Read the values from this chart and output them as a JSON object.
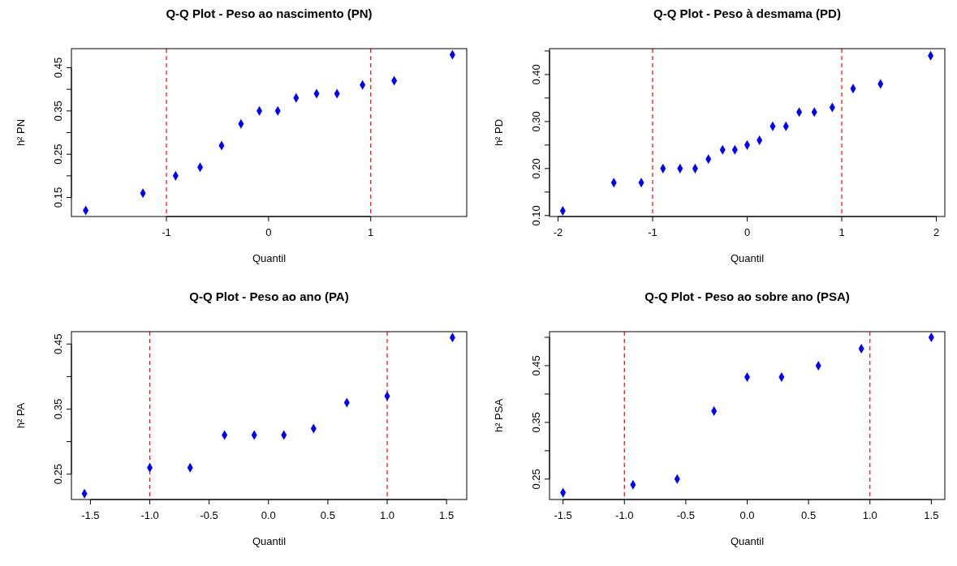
{
  "chart_data": [
    {
      "type": "scatter",
      "title": "Q-Q Plot - Peso ao nascimento (PN)",
      "xlabel": "Quantil",
      "ylabel": "h² PN",
      "marker": "diamond",
      "grid": false,
      "xlim": [
        -1.93,
        1.94
      ],
      "xticks": [
        -1,
        0,
        1
      ],
      "ylim": [
        0.106,
        0.494
      ],
      "yticks": [
        0.15,
        {
          "value": 0.2,
          "label": null
        },
        0.25,
        {
          "value": 0.3,
          "label": null
        },
        0.35,
        {
          "value": 0.4,
          "label": null
        },
        0.45
      ],
      "series": [
        {
          "color": "#0000ff",
          "x": [
            -1.79,
            -1.23,
            -0.91,
            -0.67,
            -0.46,
            -0.27,
            -0.09,
            0.09,
            0.27,
            0.47,
            0.67,
            0.92,
            1.23,
            1.8
          ],
          "values": [
            0.12,
            0.16,
            0.2,
            0.22,
            0.27,
            0.32,
            0.35,
            0.35,
            0.38,
            0.39,
            0.39,
            0.41,
            0.42,
            0.48
          ]
        }
      ],
      "ref_lines": [
        {
          "axis": "x",
          "value": -1,
          "color": "#ff0000",
          "line_style": "dashed"
        },
        {
          "axis": "x",
          "value": 1,
          "color": "#ff0000",
          "line_style": "dashed"
        }
      ]
    },
    {
      "type": "scatter",
      "title": "Q-Q Plot - Peso à desmama (PD)",
      "xlabel": "Quantil",
      "ylabel": "h² PD",
      "marker": "diamond",
      "grid": false,
      "xlim": [
        -2.09,
        2.09
      ],
      "xticks": [
        -2,
        -1,
        0,
        1,
        2
      ],
      "ylim": [
        0.098,
        0.455
      ],
      "yticks": [
        {
          "value": 0.1,
          "label": "0.10"
        },
        {
          "value": 0.15,
          "label": null
        },
        {
          "value": 0.2,
          "label": "0.20"
        },
        {
          "value": 0.25,
          "label": null
        },
        {
          "value": 0.3,
          "label": "0.30"
        },
        {
          "value": 0.35,
          "label": null
        },
        {
          "value": 0.4,
          "label": "0.40"
        },
        {
          "value": 0.45,
          "label": null
        }
      ],
      "series": [
        {
          "color": "#0000ff",
          "x": [
            -1.95,
            -1.41,
            -1.12,
            -0.89,
            -0.71,
            -0.55,
            -0.41,
            -0.26,
            -0.13,
            0,
            0.13,
            0.27,
            0.41,
            0.55,
            0.71,
            0.9,
            1.12,
            1.41,
            1.94
          ],
          "values": [
            0.11,
            0.17,
            0.17,
            0.2,
            0.2,
            0.2,
            0.22,
            0.24,
            0.24,
            0.25,
            0.26,
            0.29,
            0.29,
            0.32,
            0.32,
            0.33,
            0.37,
            0.38,
            0.44
          ]
        }
      ],
      "ref_lines": [
        {
          "axis": "x",
          "value": -1,
          "color": "#ff0000",
          "line_style": "dashed"
        },
        {
          "axis": "x",
          "value": 1,
          "color": "#ff0000",
          "line_style": "dashed"
        }
      ]
    },
    {
      "type": "scatter",
      "title": "Q-Q Plot - Peso ao ano (PA)",
      "xlabel": "Quantil",
      "ylabel": "h² PA",
      "marker": "diamond",
      "grid": false,
      "xlim": [
        -1.66,
        1.67
      ],
      "xticks": [
        -1.5,
        {
          "value": -1,
          "label": "-1.0"
        },
        -0.5,
        {
          "value": 0,
          "label": "0.0"
        },
        0.5,
        {
          "value": 1,
          "label": "1.0"
        },
        1.5
      ],
      "ylim": [
        0.211,
        0.469
      ],
      "yticks": [
        0.25,
        {
          "value": 0.3,
          "label": null
        },
        0.35,
        {
          "value": 0.4,
          "label": null
        },
        0.45
      ],
      "series": [
        {
          "color": "#0000ff",
          "x": [
            -1.55,
            -1,
            -0.66,
            -0.37,
            -0.12,
            0.13,
            0.38,
            0.66,
            1,
            1.55
          ],
          "values": [
            0.22,
            0.26,
            0.26,
            0.31,
            0.31,
            0.31,
            0.32,
            0.36,
            0.37,
            0.46
          ]
        }
      ],
      "ref_lines": [
        {
          "axis": "x",
          "value": -1,
          "color": "#ff0000",
          "line_style": "dashed"
        },
        {
          "axis": "x",
          "value": 1,
          "color": "#ff0000",
          "line_style": "dashed"
        }
      ]
    },
    {
      "type": "scatter",
      "title": "Q-Q Plot - Peso ao sobre ano (PSA)",
      "xlabel": "Quantil",
      "ylabel": "h² PSA",
      "marker": "diamond",
      "grid": false,
      "xlim": [
        -1.61,
        1.61
      ],
      "xticks": [
        -1.5,
        {
          "value": -1,
          "label": "-1.0"
        },
        -0.5,
        {
          "value": 0,
          "label": "0.0"
        },
        0.5,
        {
          "value": 1,
          "label": "1.0"
        },
        1.5
      ],
      "ylim": [
        0.214,
        0.51
      ],
      "yticks": [
        0.25,
        {
          "value": 0.3,
          "label": null
        },
        0.35,
        {
          "value": 0.4,
          "label": null
        },
        0.45,
        {
          "value": 0.5,
          "label": null
        }
      ],
      "series": [
        {
          "color": "#0000ff",
          "x": [
            -1.5,
            -0.93,
            -0.57,
            -0.27,
            0,
            0.28,
            0.58,
            0.93,
            1.5
          ],
          "values": [
            0.226,
            0.24,
            0.25,
            0.37,
            0.43,
            0.43,
            0.45,
            0.48,
            0.5
          ]
        }
      ],
      "ref_lines": [
        {
          "axis": "x",
          "value": -1,
          "color": "#ff0000",
          "line_style": "dashed"
        },
        {
          "axis": "x",
          "value": 1,
          "color": "#ff0000",
          "line_style": "dashed"
        }
      ]
    }
  ]
}
